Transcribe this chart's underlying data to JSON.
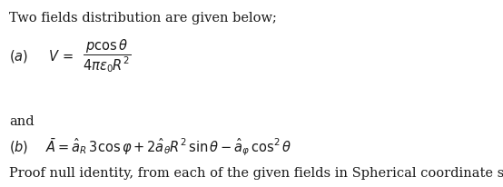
{
  "line1": "Two fields distribution are given below;",
  "line3": "and",
  "line5": "Proof null identity, from each of the given fields in Spherical coordinate system.",
  "bg_color": "#ffffff",
  "text_color": "#1a1a1a",
  "font_size": 10.5
}
